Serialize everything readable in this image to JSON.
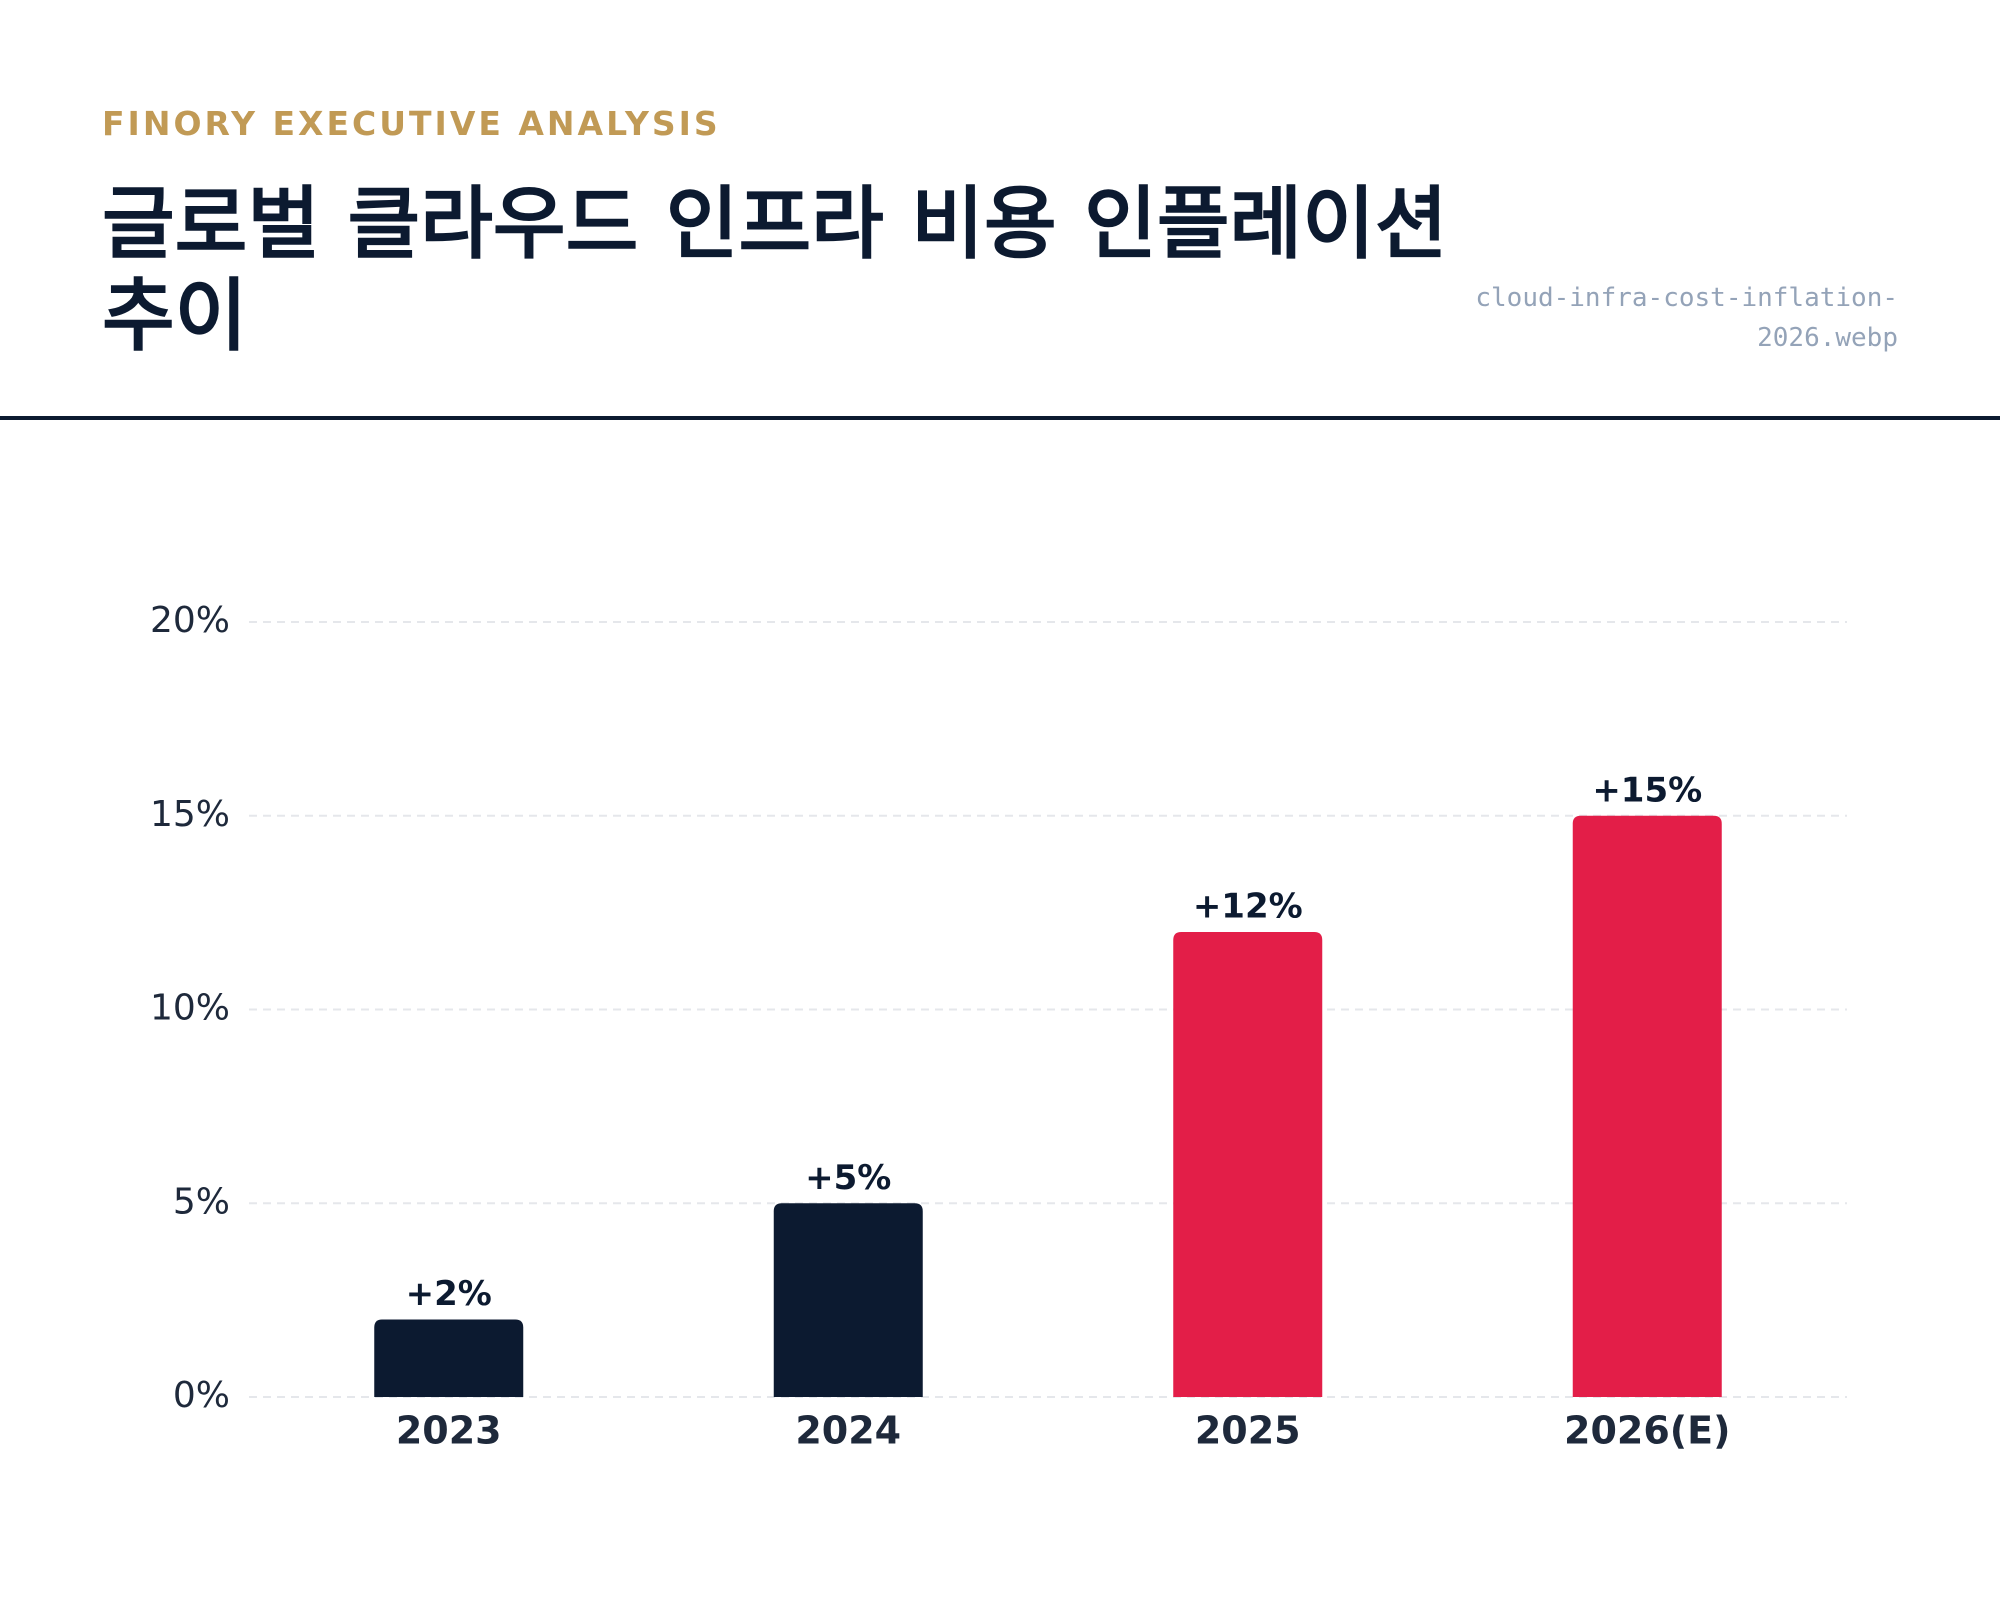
{
  "chart_data": {
    "type": "bar",
    "kicker": "FINORY EXECUTIVE ANALYSIS",
    "title": "글로벌 클라우드 인프라 비용 인플레이션 추이",
    "filename": "cloud-infra-cost-inflation-2026.webp",
    "categories": [
      "2023",
      "2024",
      "2025",
      "2026(E)"
    ],
    "values": [
      2,
      5,
      12,
      15
    ],
    "value_labels": [
      "+2%",
      "+5%",
      "+12%",
      "+15%"
    ],
    "colors": [
      "#0c1a30",
      "#0c1a30",
      "#e31e48",
      "#e31e48"
    ],
    "ylim": [
      0,
      20
    ],
    "yticks": [
      {
        "value": 0,
        "label": "0%"
      },
      {
        "value": 5,
        "label": "5%"
      },
      {
        "value": 10,
        "label": "10%"
      },
      {
        "value": 15,
        "label": "15%"
      },
      {
        "value": 20,
        "label": "20%"
      }
    ],
    "grid": true
  }
}
